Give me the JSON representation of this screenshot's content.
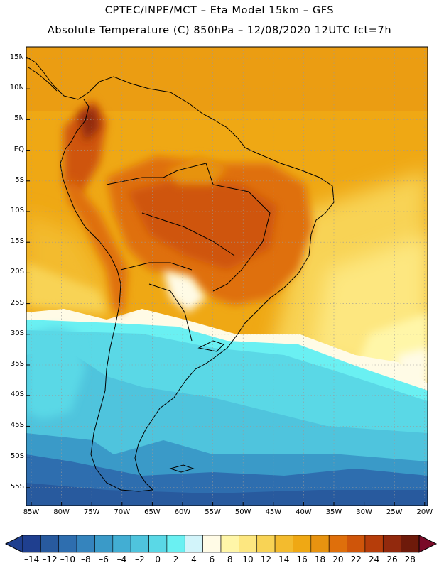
{
  "header": {
    "line1": "CPTEC/INPE/MCT –  Eta Model 15km – GFS",
    "line2": "Absolute Temperature (C) 850hPa – 12/08/2020 12UTC fct=7h"
  },
  "map": {
    "lat_labels": [
      "15N",
      "10N",
      "5N",
      "EQ",
      "5S",
      "10S",
      "15S",
      "20S",
      "25S",
      "30S",
      "35S",
      "40S",
      "45S",
      "50S",
      "55S"
    ],
    "lon_labels": [
      "85W",
      "80W",
      "75W",
      "70W",
      "65W",
      "60W",
      "55W",
      "50W",
      "45W",
      "40W",
      "35W",
      "30W",
      "25W",
      "20W"
    ]
  },
  "colorbar": {
    "labels": [
      "-14",
      "-12",
      "-10",
      "-8",
      "-6",
      "-4",
      "-2",
      "0",
      "2",
      "4",
      "6",
      "8",
      "10",
      "12",
      "14",
      "16",
      "18",
      "20",
      "22",
      "24",
      "26",
      "28"
    ],
    "colors": [
      "#1f3f8f",
      "#285a9e",
      "#2e6eaf",
      "#3584bd",
      "#3a9ac8",
      "#42aed3",
      "#4fc4dd",
      "#5ad8e6",
      "#6af0f2",
      "#d2f4fa",
      "#fffbe6",
      "#fff6a8",
      "#fde780",
      "#f8d355",
      "#f3bb2e",
      "#efa814",
      "#e79310",
      "#df6f0b",
      "#cf550a",
      "#b63d0a",
      "#92290d",
      "#6e1a0a"
    ],
    "under_color": "#1f3f8f",
    "over_color": "#7a0a28"
  }
}
